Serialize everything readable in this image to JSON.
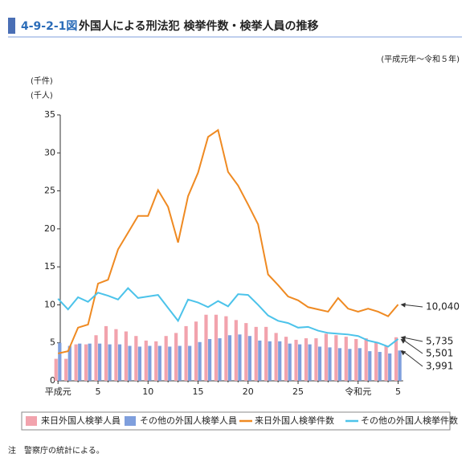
{
  "chart_data": {
    "type": "combo",
    "figure_number": "4-9-2-1図",
    "title": "外国人による刑法犯 検挙件数・検挙人員の推移",
    "period": "(平成元年～令和５年)",
    "y_label_count": "(千件)",
    "y_label_people": "(千人)",
    "note": "注　警察庁の統計による。",
    "categories": [
      "平成元",
      null,
      null,
      null,
      "5",
      null,
      null,
      null,
      null,
      "10",
      null,
      null,
      null,
      null,
      "15",
      null,
      null,
      null,
      null,
      "20",
      null,
      null,
      null,
      null,
      "25",
      null,
      null,
      null,
      null,
      null,
      "令和元",
      null,
      null,
      null,
      "5"
    ],
    "ylim": [
      0,
      35
    ],
    "yticks": [
      0,
      5,
      10,
      15,
      20,
      25,
      30,
      35
    ],
    "grid": false,
    "series": [
      {
        "name": "来日外国人検挙人員",
        "type": "bar",
        "color": "#f2a3ad",
        "values": [
          2.9,
          2.9,
          4.8,
          4.8,
          6.0,
          7.2,
          6.8,
          6.5,
          5.9,
          5.3,
          5.2,
          5.9,
          6.3,
          7.2,
          7.8,
          8.7,
          8.7,
          8.5,
          8.0,
          7.6,
          7.1,
          7.1,
          6.3,
          5.8,
          5.4,
          5.6,
          5.6,
          6.2,
          6.0,
          5.8,
          5.5,
          5.6,
          5.0,
          4.6,
          5.735
        ],
        "value_labels": [
          null,
          null,
          null,
          null,
          null,
          null,
          null,
          null,
          null,
          null,
          null,
          null,
          null,
          null,
          null,
          null,
          null,
          null,
          null,
          null,
          null,
          null,
          null,
          null,
          null,
          null,
          null,
          null,
          null,
          null,
          null,
          null,
          null,
          null,
          "5,735"
        ]
      },
      {
        "name": "その他の外国人検挙人員",
        "type": "bar",
        "color": "#7f9fdd",
        "values": [
          5.0,
          4.6,
          4.9,
          4.9,
          4.9,
          4.8,
          4.8,
          4.6,
          4.5,
          4.6,
          4.6,
          4.5,
          4.6,
          4.6,
          5.1,
          5.5,
          5.6,
          6.0,
          6.1,
          5.9,
          5.3,
          5.2,
          5.2,
          4.9,
          4.8,
          4.8,
          4.5,
          4.4,
          4.3,
          4.2,
          4.3,
          3.9,
          3.8,
          3.6,
          3.991
        ],
        "value_labels": [
          null,
          null,
          null,
          null,
          null,
          null,
          null,
          null,
          null,
          null,
          null,
          null,
          null,
          null,
          null,
          null,
          null,
          null,
          null,
          null,
          null,
          null,
          null,
          null,
          null,
          null,
          null,
          null,
          null,
          null,
          null,
          null,
          null,
          null,
          "3,991"
        ]
      },
      {
        "name": "来日外国人検挙件数",
        "type": "line",
        "color": "#ef8a22",
        "values": [
          3.6,
          3.9,
          7.0,
          7.4,
          12.8,
          13.3,
          17.3,
          19.5,
          21.7,
          21.7,
          25.1,
          22.9,
          18.2,
          24.3,
          27.4,
          32.1,
          33.0,
          27.5,
          25.7,
          23.2,
          20.6,
          14.0,
          12.6,
          11.1,
          10.6,
          9.7,
          9.4,
          9.1,
          10.9,
          9.5,
          9.1,
          9.5,
          9.1,
          8.5,
          10.04
        ],
        "value_labels": [
          null,
          null,
          null,
          null,
          null,
          null,
          null,
          null,
          null,
          null,
          null,
          null,
          null,
          null,
          null,
          null,
          null,
          null,
          null,
          null,
          null,
          null,
          null,
          null,
          null,
          null,
          null,
          null,
          null,
          null,
          null,
          null,
          null,
          null,
          "10,040"
        ]
      },
      {
        "name": "その他の外国人検挙件数",
        "type": "line",
        "color": "#4cc3ea",
        "values": [
          10.8,
          9.4,
          11.0,
          10.4,
          11.6,
          11.2,
          10.7,
          12.2,
          10.9,
          11.1,
          11.3,
          9.6,
          7.9,
          10.7,
          10.3,
          9.7,
          10.5,
          9.8,
          11.4,
          11.3,
          10.0,
          8.6,
          7.9,
          7.6,
          7.0,
          7.1,
          6.6,
          6.3,
          6.2,
          6.1,
          5.9,
          5.3,
          5.0,
          4.5,
          5.501
        ],
        "value_labels": [
          null,
          null,
          null,
          null,
          null,
          null,
          null,
          null,
          null,
          null,
          null,
          null,
          null,
          null,
          null,
          null,
          null,
          null,
          null,
          null,
          null,
          null,
          null,
          null,
          null,
          null,
          null,
          null,
          null,
          null,
          null,
          null,
          null,
          null,
          "5,501"
        ]
      }
    ]
  }
}
